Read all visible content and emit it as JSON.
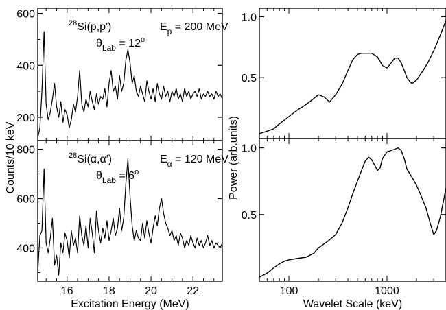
{
  "chart_data": [
    {
      "type": "line",
      "panel": "left-top",
      "annotations": {
        "reaction": "Si(p,p′)",
        "mass_number": "28",
        "energy_label": "E",
        "energy_sub": "p",
        "energy_value": "= 200 MeV",
        "angle_label": "θ",
        "angle_sub": "Lab",
        "angle_value": "= 12",
        "angle_unit": "o"
      },
      "xlim": [
        14.6,
        23.4
      ],
      "ylim": [
        110,
        620
      ],
      "yticks": [
        200,
        400,
        600
      ],
      "ytick_labels": [
        "200",
        "400",
        "600"
      ],
      "x": [
        14.6,
        14.7,
        14.8,
        14.9,
        15.0,
        15.1,
        15.2,
        15.3,
        15.4,
        15.5,
        15.6,
        15.7,
        15.8,
        15.9,
        16.0,
        16.1,
        16.2,
        16.3,
        16.4,
        16.5,
        16.6,
        16.7,
        16.8,
        16.9,
        17.0,
        17.1,
        17.2,
        17.3,
        17.4,
        17.5,
        17.6,
        17.7,
        17.8,
        17.9,
        18.0,
        18.1,
        18.2,
        18.3,
        18.4,
        18.5,
        18.6,
        18.7,
        18.8,
        18.9,
        19.0,
        19.1,
        19.2,
        19.3,
        19.4,
        19.5,
        19.6,
        19.7,
        19.8,
        19.9,
        20.0,
        20.1,
        20.2,
        20.3,
        20.4,
        20.5,
        20.6,
        20.7,
        20.8,
        20.9,
        21.0,
        21.1,
        21.2,
        21.3,
        21.4,
        21.5,
        21.6,
        21.7,
        21.8,
        21.9,
        22.0,
        22.1,
        22.2,
        22.3,
        22.4,
        22.5,
        22.6,
        22.7,
        22.8,
        22.9,
        23.0,
        23.1,
        23.2,
        23.3,
        23.4
      ],
      "values": [
        120,
        160,
        300,
        530,
        250,
        190,
        220,
        270,
        330,
        240,
        200,
        260,
        180,
        230,
        210,
        160,
        190,
        250,
        220,
        280,
        380,
        250,
        220,
        270,
        240,
        300,
        260,
        230,
        290,
        250,
        280,
        270,
        310,
        240,
        330,
        380,
        300,
        320,
        270,
        360,
        300,
        330,
        420,
        460,
        410,
        330,
        360,
        300,
        280,
        320,
        290,
        260,
        340,
        300,
        270,
        310,
        260,
        330,
        290,
        270,
        320,
        280,
        300,
        260,
        300,
        280,
        310,
        270,
        290,
        260,
        310,
        280,
        300,
        270,
        290,
        300,
        280,
        310,
        270,
        290,
        280,
        300,
        280,
        290,
        270,
        300,
        280,
        290,
        270
      ]
    },
    {
      "type": "line",
      "panel": "left-bottom",
      "annotations": {
        "reaction": "Si(α,α′)",
        "mass_number": "28",
        "energy_label": "E",
        "energy_sub": "α",
        "energy_value": "= 120 MeV",
        "angle_label": "θ",
        "angle_sub": "Lab",
        "angle_value": "= 6",
        "angle_unit": "o"
      },
      "xlim": [
        14.6,
        23.4
      ],
      "ylim": [
        265,
        835
      ],
      "yticks": [
        400,
        600,
        800
      ],
      "ytick_labels": [
        "400",
        "600",
        "800"
      ],
      "xticks": [
        16,
        18,
        20,
        22
      ],
      "xtick_labels": [
        "16",
        "18",
        "20",
        "22"
      ],
      "xlabel": "Excitation Energy (MeV)",
      "x": [
        14.6,
        14.7,
        14.8,
        14.9,
        15.0,
        15.1,
        15.2,
        15.3,
        15.4,
        15.5,
        15.6,
        15.7,
        15.8,
        15.9,
        16.0,
        16.1,
        16.2,
        16.3,
        16.4,
        16.5,
        16.6,
        16.7,
        16.8,
        16.9,
        17.0,
        17.1,
        17.2,
        17.3,
        17.4,
        17.5,
        17.6,
        17.7,
        17.8,
        17.9,
        18.0,
        18.1,
        18.2,
        18.3,
        18.4,
        18.5,
        18.6,
        18.7,
        18.8,
        18.9,
        19.0,
        19.1,
        19.2,
        19.3,
        19.4,
        19.5,
        19.6,
        19.7,
        19.8,
        19.9,
        20.0,
        20.1,
        20.2,
        20.3,
        20.4,
        20.5,
        20.6,
        20.7,
        20.8,
        20.9,
        21.0,
        21.1,
        21.2,
        21.3,
        21.4,
        21.5,
        21.6,
        21.7,
        21.8,
        21.9,
        22.0,
        22.1,
        22.2,
        22.3,
        22.4,
        22.5,
        22.6,
        22.7,
        22.8,
        22.9,
        23.0,
        23.1,
        23.2,
        23.3,
        23.4
      ],
      "values": [
        300,
        450,
        470,
        720,
        420,
        380,
        440,
        520,
        330,
        370,
        290,
        420,
        380,
        460,
        430,
        360,
        470,
        410,
        440,
        380,
        530,
        450,
        410,
        490,
        400,
        520,
        460,
        380,
        550,
        470,
        420,
        480,
        440,
        510,
        430,
        470,
        520,
        450,
        480,
        560,
        470,
        520,
        660,
        760,
        610,
        490,
        430,
        470,
        440,
        430,
        500,
        440,
        510,
        460,
        420,
        480,
        530,
        490,
        560,
        600,
        540,
        500,
        480,
        450,
        470,
        430,
        450,
        410,
        460,
        440,
        400,
        430,
        410,
        450,
        420,
        400,
        440,
        410,
        430,
        400,
        420,
        450,
        410,
        430,
        400,
        420,
        410,
        400,
        420
      ]
    },
    {
      "type": "line",
      "panel": "right-top",
      "xscale": "log",
      "xlim": [
        50,
        4000
      ],
      "ylim": [
        0,
        1.07
      ],
      "yticks": [
        0.5,
        1.0
      ],
      "ytick_labels": [
        "0.5",
        "1.0"
      ],
      "x": [
        50,
        60,
        70,
        80,
        100,
        120,
        150,
        180,
        200,
        230,
        260,
        300,
        350,
        400,
        450,
        500,
        550,
        600,
        700,
        800,
        900,
        1000,
        1100,
        1200,
        1300,
        1400,
        1500,
        1600,
        1700,
        1800,
        2000,
        2300,
        2600,
        3000,
        3500,
        4000
      ],
      "values": [
        0.04,
        0.06,
        0.08,
        0.12,
        0.18,
        0.23,
        0.28,
        0.33,
        0.36,
        0.34,
        0.3,
        0.36,
        0.45,
        0.56,
        0.65,
        0.69,
        0.7,
        0.7,
        0.7,
        0.67,
        0.6,
        0.58,
        0.62,
        0.66,
        0.66,
        0.62,
        0.56,
        0.5,
        0.47,
        0.45,
        0.48,
        0.55,
        0.62,
        0.72,
        0.85,
        0.97
      ]
    },
    {
      "type": "line",
      "panel": "right-bottom",
      "xscale": "log",
      "xlim": [
        50,
        4000
      ],
      "ylim": [
        0,
        1.07
      ],
      "yticks": [
        0.5,
        1.0
      ],
      "ytick_labels": [
        "0.5",
        "1.0"
      ],
      "xticks": [
        100,
        1000
      ],
      "xtick_labels": [
        "100",
        "1000"
      ],
      "xlabel": "Wavelet Scale (keV)",
      "x": [
        50,
        60,
        70,
        80,
        90,
        100,
        120,
        150,
        180,
        200,
        250,
        300,
        350,
        400,
        450,
        500,
        550,
        600,
        650,
        700,
        750,
        800,
        850,
        900,
        1000,
        1100,
        1200,
        1300,
        1400,
        1500,
        1600,
        1800,
        2000,
        2200,
        2500,
        2800,
        3000,
        3200,
        3500,
        4000
      ],
      "values": [
        0.03,
        0.06,
        0.1,
        0.13,
        0.15,
        0.16,
        0.17,
        0.18,
        0.21,
        0.25,
        0.3,
        0.35,
        0.44,
        0.55,
        0.66,
        0.75,
        0.83,
        0.9,
        0.93,
        0.91,
        0.87,
        0.83,
        0.85,
        0.92,
        0.97,
        0.98,
        0.99,
        1.0,
        0.98,
        0.92,
        0.84,
        0.78,
        0.72,
        0.65,
        0.55,
        0.42,
        0.35,
        0.38,
        0.48,
        0.7
      ]
    }
  ],
  "ylabel_left": "Counts/10 keV",
  "ylabel_right": "Power (arb.units)"
}
